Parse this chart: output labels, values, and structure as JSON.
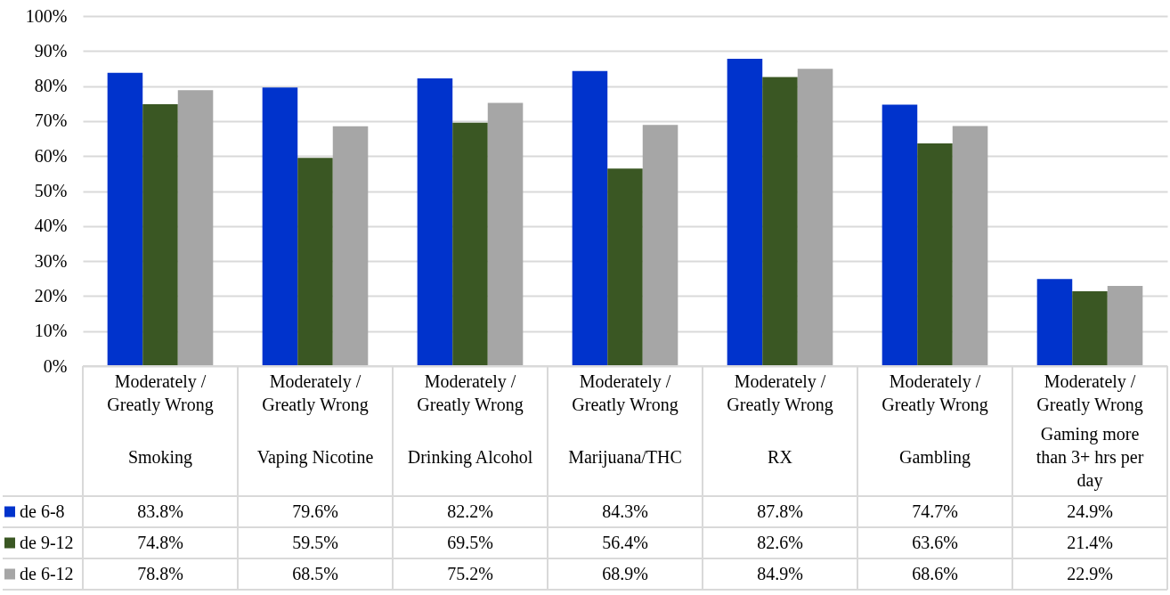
{
  "chart_data": {
    "type": "bar",
    "categories": [
      "Moderately / Greatly Wrong\nSmoking",
      "Moderately / Greatly Wrong\nVaping Nicotine",
      "Moderately / Greatly Wrong\nDrinking Alcohol",
      "Moderately / Greatly Wrong\nMarijuana/THC",
      "Moderately / Greatly Wrong\nRX",
      "Moderately / Greatly Wrong\nGambling",
      "Moderately / Greatly Wrong\nGaming more than 3+ hrs per day"
    ],
    "series": [
      {
        "name": "de 6-8",
        "color": "#0033cc",
        "values": [
          83.8,
          79.6,
          82.2,
          84.3,
          87.8,
          74.7,
          24.9
        ],
        "value_labels": [
          "83.8%",
          "79.6%",
          "82.2%",
          "84.3%",
          "87.8%",
          "74.7%",
          "24.9%"
        ]
      },
      {
        "name": "de 9-12",
        "color": "#3a5723",
        "values": [
          74.8,
          59.5,
          69.5,
          56.4,
          82.6,
          63.6,
          21.4
        ],
        "value_labels": [
          "74.8%",
          "59.5%",
          "69.5%",
          "56.4%",
          "82.6%",
          "63.6%",
          "21.4%"
        ]
      },
      {
        "name": "de 6-12",
        "color": "#a6a6a6",
        "values": [
          78.8,
          68.5,
          75.2,
          68.9,
          84.9,
          68.6,
          22.9
        ],
        "value_labels": [
          "78.8%",
          "68.5%",
          "75.2%",
          "68.9%",
          "84.9%",
          "68.6%",
          "22.9%"
        ]
      }
    ],
    "ylim": [
      0,
      100
    ],
    "yticks": [
      {
        "value": 0,
        "label": "0%"
      },
      {
        "value": 10,
        "label": "10%"
      },
      {
        "value": 20,
        "label": "20%"
      },
      {
        "value": 30,
        "label": "30%"
      },
      {
        "value": 40,
        "label": "40%"
      },
      {
        "value": 50,
        "label": "50%"
      },
      {
        "value": 60,
        "label": "60%"
      },
      {
        "value": 70,
        "label": "70%"
      },
      {
        "value": 80,
        "label": "80%"
      },
      {
        "value": 90,
        "label": "90%"
      },
      {
        "value": 100,
        "label": "100%"
      }
    ],
    "grid": "y",
    "legend": "bottom left"
  }
}
